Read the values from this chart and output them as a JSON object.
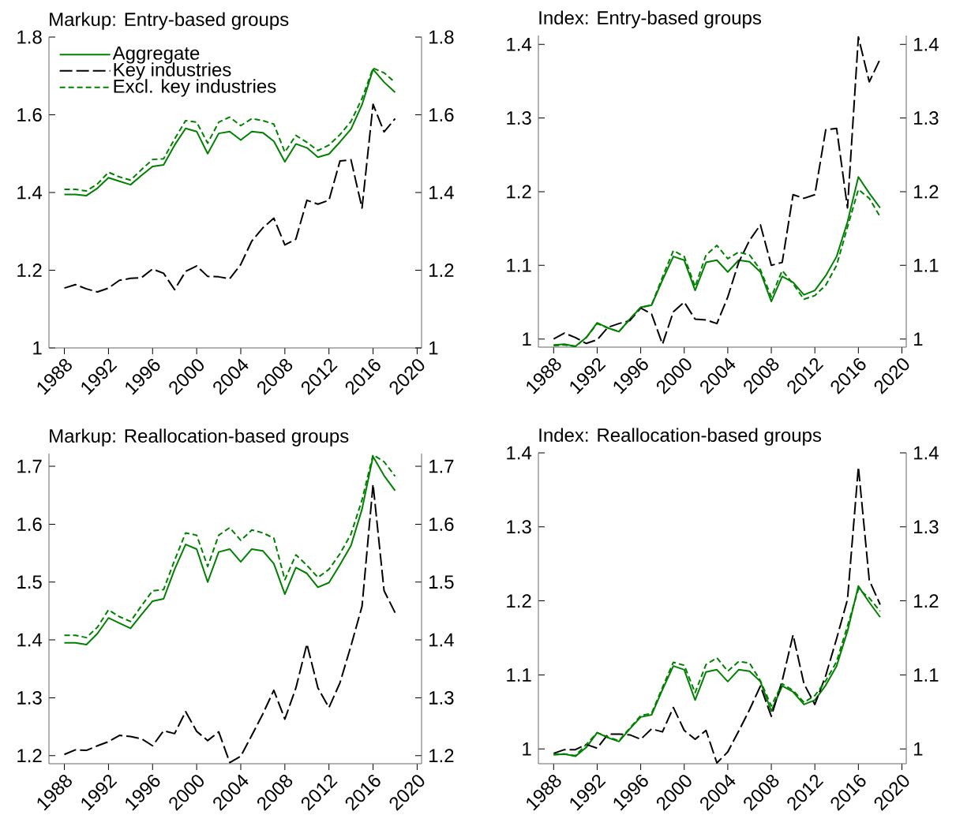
{
  "chart_data": [
    {
      "type": "line",
      "title": "Markup: Entry-based groups",
      "legend": "top left",
      "x": [
        1988,
        1989,
        1990,
        1991,
        1992,
        1993,
        1994,
        1995,
        1996,
        1997,
        1998,
        1999,
        2000,
        2001,
        2002,
        2003,
        2004,
        2005,
        2006,
        2007,
        2008,
        2009,
        2010,
        2011,
        2012,
        2013,
        2014,
        2015,
        2016,
        2017,
        2018
      ],
      "xlim": [
        1986.6,
        2020.4
      ],
      "xticks": [
        1988,
        1992,
        1996,
        2000,
        2004,
        2008,
        2012,
        2016,
        2020
      ],
      "ylim": [
        1,
        1.8
      ],
      "yticks": [
        1,
        1.2,
        1.4,
        1.6,
        1.8
      ],
      "y2lim": [
        1,
        1.8
      ],
      "y2ticks": [
        1,
        1.2,
        1.4,
        1.6,
        1.8
      ],
      "series": [
        {
          "name": "Aggregate",
          "color": "#008000",
          "line_style": "solid",
          "values": [
            1.395,
            1.395,
            1.392,
            1.411,
            1.438,
            1.429,
            1.42,
            1.444,
            1.467,
            1.471,
            1.522,
            1.565,
            1.557,
            1.5,
            1.552,
            1.557,
            1.535,
            1.557,
            1.554,
            1.532,
            1.479,
            1.525,
            1.515,
            1.491,
            1.499,
            1.53,
            1.563,
            1.626,
            1.717,
            1.684,
            1.658
          ]
        },
        {
          "name": "Key industries",
          "color": "#000000",
          "line_style": "dashed",
          "values": [
            1.154,
            1.163,
            1.152,
            1.144,
            1.154,
            1.174,
            1.179,
            1.181,
            1.203,
            1.192,
            1.15,
            1.197,
            1.211,
            1.184,
            1.183,
            1.178,
            1.215,
            1.275,
            1.309,
            1.334,
            1.265,
            1.28,
            1.38,
            1.37,
            1.38,
            1.481,
            1.484,
            1.36,
            1.627,
            1.556,
            1.59
          ]
        },
        {
          "name": "Excl. key industries",
          "color": "#008000",
          "line_style": "dotted",
          "values": [
            1.408,
            1.408,
            1.404,
            1.422,
            1.452,
            1.44,
            1.432,
            1.459,
            1.485,
            1.487,
            1.538,
            1.585,
            1.581,
            1.527,
            1.581,
            1.594,
            1.572,
            1.59,
            1.585,
            1.576,
            1.504,
            1.547,
            1.529,
            1.508,
            1.522,
            1.549,
            1.583,
            1.642,
            1.72,
            1.708,
            1.683
          ]
        }
      ]
    },
    {
      "type": "line",
      "title": "Index: Entry-based groups",
      "x": [
        1988,
        1989,
        1990,
        1991,
        1992,
        1993,
        1994,
        1995,
        1996,
        1997,
        1998,
        1999,
        2000,
        2001,
        2002,
        2003,
        2004,
        2005,
        2006,
        2007,
        2008,
        2009,
        2010,
        2011,
        2012,
        2013,
        2014,
        2015,
        2016,
        2017,
        2018
      ],
      "xlim": [
        1986.6,
        2020.4
      ],
      "xticks": [
        1988,
        1992,
        1996,
        2000,
        2004,
        2008,
        2012,
        2016,
        2020
      ],
      "ylim": [
        0.989,
        1.412
      ],
      "yticks": [
        1,
        1.1,
        1.2,
        1.3,
        1.4
      ],
      "y2lim": [
        0.989,
        1.412
      ],
      "y2ticks": [
        1,
        1.1,
        1.2,
        1.3,
        1.4
      ],
      "series": [
        {
          "color": "#008000",
          "line_style": "solid",
          "values": [
            0.992,
            0.993,
            0.99,
            1.002,
            1.022,
            1.015,
            1.01,
            1.027,
            1.043,
            1.046,
            1.08,
            1.112,
            1.107,
            1.066,
            1.104,
            1.107,
            1.091,
            1.107,
            1.105,
            1.091,
            1.051,
            1.085,
            1.077,
            1.06,
            1.066,
            1.086,
            1.112,
            1.159,
            1.22,
            1.198,
            1.178
          ]
        },
        {
          "color": "#000000",
          "line_style": "dashed",
          "values": [
            1.0,
            1.008,
            1.002,
            0.994,
            0.999,
            1.016,
            1.021,
            1.025,
            1.042,
            1.034,
            0.993,
            1.037,
            1.05,
            1.027,
            1.026,
            1.021,
            1.057,
            1.104,
            1.134,
            1.155,
            1.1,
            1.104,
            1.196,
            1.191,
            1.196,
            1.284,
            1.286,
            1.178,
            1.41,
            1.349,
            1.38
          ]
        },
        {
          "color": "#008000",
          "line_style": "dotted",
          "values": [
            0.991,
            0.992,
            0.99,
            1.002,
            1.021,
            1.015,
            1.01,
            1.027,
            1.043,
            1.046,
            1.084,
            1.12,
            1.112,
            1.071,
            1.114,
            1.127,
            1.109,
            1.118,
            1.114,
            1.094,
            1.057,
            1.093,
            1.075,
            1.054,
            1.059,
            1.073,
            1.1,
            1.152,
            1.203,
            1.191,
            1.166
          ]
        }
      ]
    },
    {
      "type": "line",
      "title": "Markup: Reallocation-based groups",
      "x": [
        1988,
        1989,
        1990,
        1991,
        1992,
        1993,
        1994,
        1995,
        1996,
        1997,
        1998,
        1999,
        2000,
        2001,
        2002,
        2003,
        2004,
        2005,
        2006,
        2007,
        2008,
        2009,
        2010,
        2011,
        2012,
        2013,
        2014,
        2015,
        2016,
        2017,
        2018
      ],
      "xlim": [
        1986.6,
        2020.4
      ],
      "xticks": [
        1988,
        1992,
        1996,
        2000,
        2004,
        2008,
        2012,
        2016,
        2020
      ],
      "ylim": [
        1.186,
        1.722
      ],
      "yticks": [
        1.2,
        1.3,
        1.4,
        1.5,
        1.6,
        1.7
      ],
      "y2lim": [
        1.186,
        1.722
      ],
      "y2ticks": [
        1.2,
        1.3,
        1.4,
        1.5,
        1.6,
        1.7
      ],
      "series": [
        {
          "color": "#008000",
          "line_style": "solid",
          "values": [
            1.395,
            1.395,
            1.392,
            1.411,
            1.438,
            1.429,
            1.42,
            1.444,
            1.467,
            1.471,
            1.522,
            1.565,
            1.557,
            1.5,
            1.552,
            1.557,
            1.535,
            1.557,
            1.554,
            1.532,
            1.479,
            1.525,
            1.515,
            1.491,
            1.499,
            1.53,
            1.563,
            1.626,
            1.717,
            1.684,
            1.658
          ]
        },
        {
          "color": "#000000",
          "line_style": "dashed",
          "values": [
            1.202,
            1.21,
            1.209,
            1.217,
            1.224,
            1.235,
            1.233,
            1.229,
            1.217,
            1.243,
            1.238,
            1.276,
            1.242,
            1.226,
            1.241,
            1.188,
            1.199,
            1.235,
            1.272,
            1.313,
            1.263,
            1.317,
            1.393,
            1.317,
            1.283,
            1.326,
            1.39,
            1.458,
            1.669,
            1.485,
            1.447
          ]
        },
        {
          "color": "#008000",
          "line_style": "dotted",
          "values": [
            1.408,
            1.408,
            1.404,
            1.422,
            1.452,
            1.44,
            1.432,
            1.459,
            1.485,
            1.487,
            1.538,
            1.585,
            1.581,
            1.527,
            1.581,
            1.594,
            1.572,
            1.59,
            1.585,
            1.576,
            1.504,
            1.547,
            1.529,
            1.508,
            1.522,
            1.549,
            1.583,
            1.642,
            1.72,
            1.708,
            1.683
          ]
        }
      ]
    },
    {
      "type": "line",
      "title": "Index: Reallocation-based groups",
      "x": [
        1988,
        1989,
        1990,
        1991,
        1992,
        1993,
        1994,
        1995,
        1996,
        1997,
        1998,
        1999,
        2000,
        2001,
        2002,
        2003,
        2004,
        2005,
        2006,
        2007,
        2008,
        2009,
        2010,
        2011,
        2012,
        2013,
        2014,
        2015,
        2016,
        2017,
        2018
      ],
      "xlim": [
        1986.6,
        2020.4
      ],
      "xticks": [
        1988,
        1992,
        1996,
        2000,
        2004,
        2008,
        2012,
        2016,
        2020
      ],
      "ylim": [
        0.98,
        1.4
      ],
      "yticks": [
        1,
        1.1,
        1.2,
        1.3,
        1.4
      ],
      "y2lim": [
        0.98,
        1.4
      ],
      "y2ticks": [
        1,
        1.1,
        1.2,
        1.3,
        1.4
      ],
      "series": [
        {
          "color": "#008000",
          "line_style": "solid",
          "values": [
            0.992,
            0.993,
            0.99,
            1.002,
            1.022,
            1.015,
            1.01,
            1.027,
            1.043,
            1.046,
            1.08,
            1.112,
            1.107,
            1.066,
            1.104,
            1.107,
            1.091,
            1.107,
            1.105,
            1.091,
            1.051,
            1.085,
            1.077,
            1.06,
            1.066,
            1.086,
            1.112,
            1.159,
            1.22,
            1.198,
            1.178
          ]
        },
        {
          "color": "#000000",
          "line_style": "dashed",
          "values": [
            0.994,
            0.999,
            0.999,
            1.006,
            1.001,
            1.02,
            1.02,
            1.019,
            1.013,
            1.027,
            1.023,
            1.056,
            1.025,
            1.013,
            1.025,
            0.981,
            0.996,
            1.024,
            1.053,
            1.085,
            1.044,
            1.092,
            1.154,
            1.088,
            1.06,
            1.099,
            1.149,
            1.202,
            1.381,
            1.228,
            1.195
          ]
        },
        {
          "color": "#008000",
          "line_style": "dotted",
          "values": [
            0.993,
            0.993,
            0.991,
            1.006,
            1.022,
            1.016,
            1.011,
            1.028,
            1.045,
            1.048,
            1.083,
            1.117,
            1.113,
            1.076,
            1.114,
            1.123,
            1.105,
            1.118,
            1.116,
            1.092,
            1.058,
            1.088,
            1.079,
            1.063,
            1.072,
            1.092,
            1.118,
            1.166,
            1.216,
            1.204,
            1.186
          ]
        }
      ]
    }
  ]
}
